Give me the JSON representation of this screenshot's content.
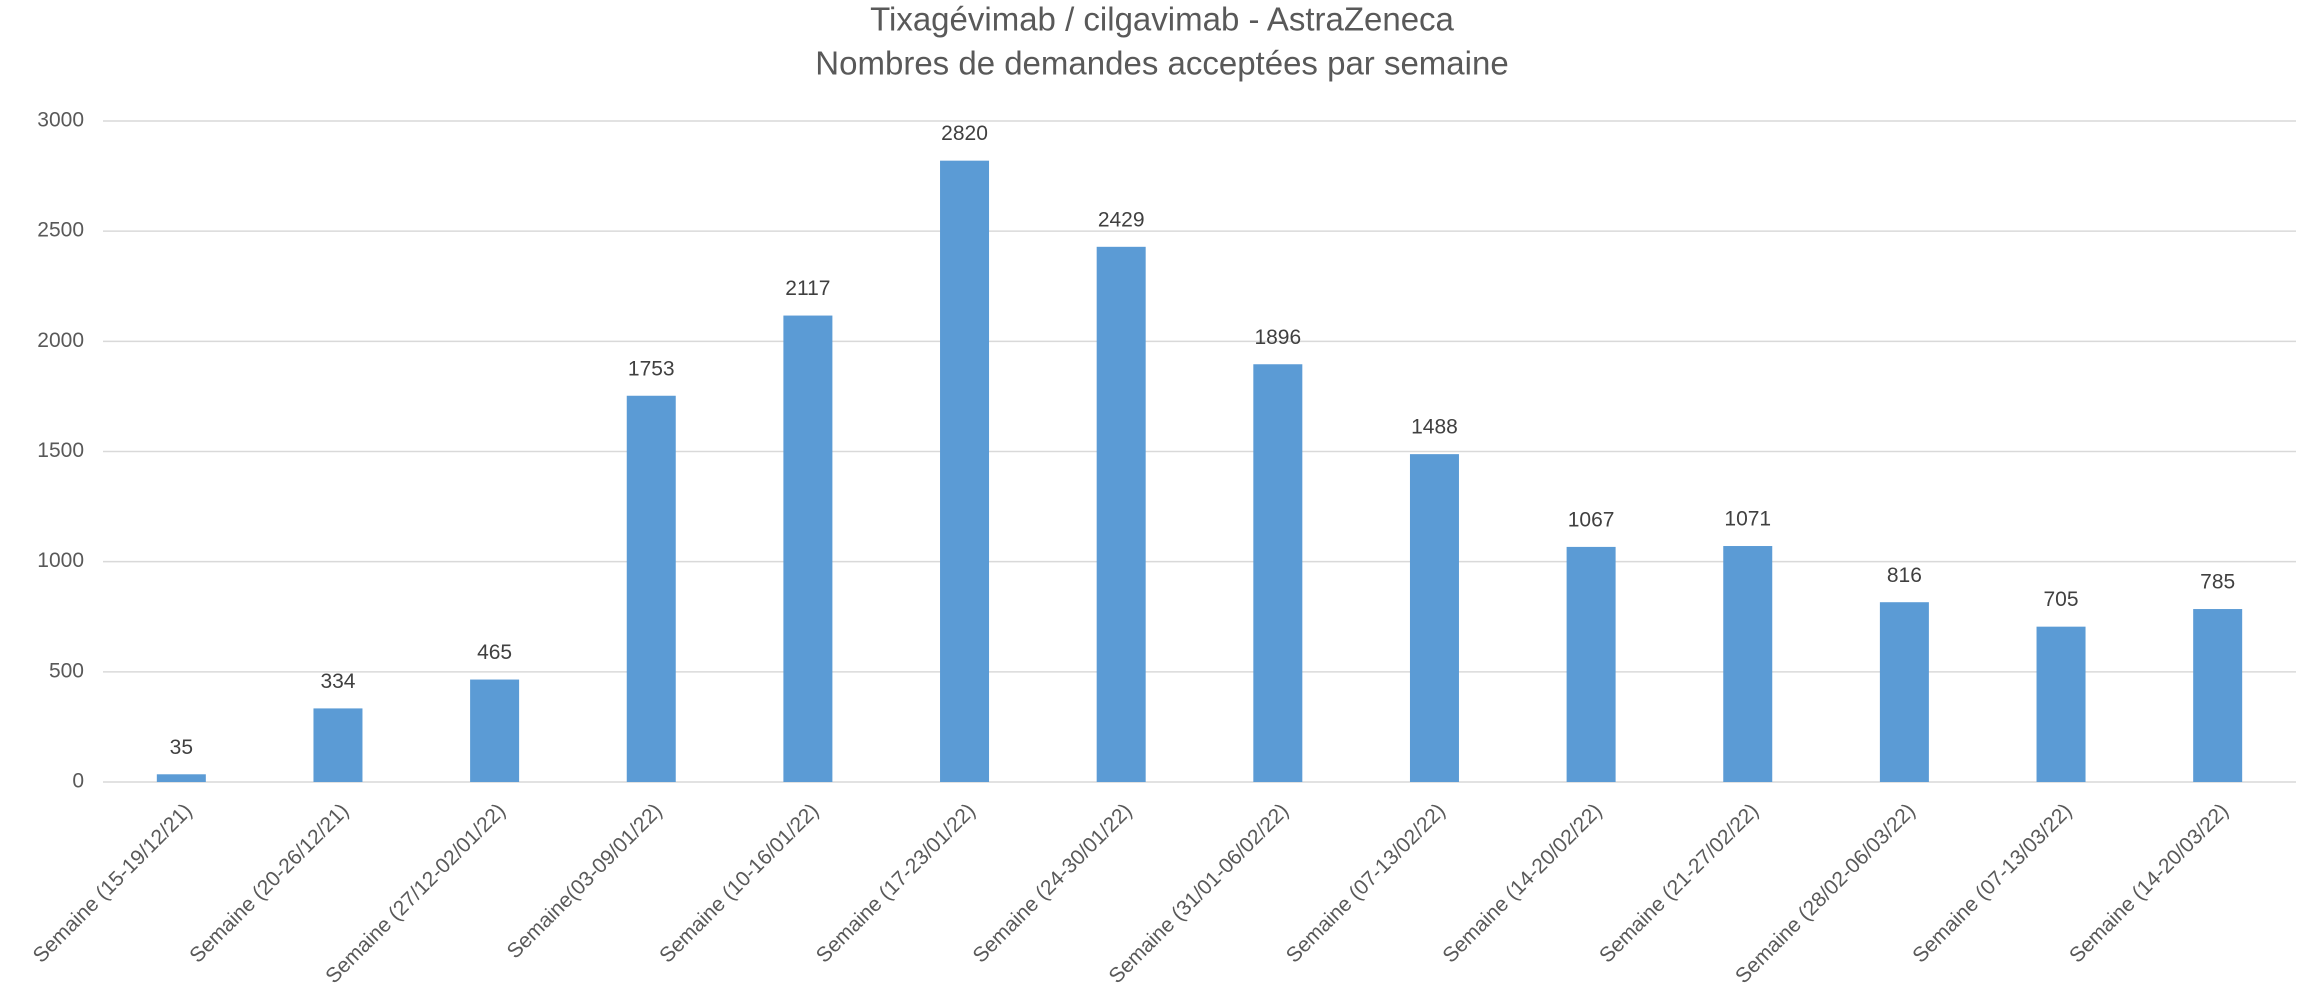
{
  "chart_data": {
    "type": "bar",
    "title": "Tixagévimab / cilgavimab - AstraZeneca",
    "subtitle": "Nombres de demandes acceptées par semaine",
    "categories": [
      "Semaine (15-19/12/21)",
      "Semaine (20-26/12/21)",
      "Semaine (27/12-02/01/22)",
      "Semaine(03-09/01/22)",
      "Semaine (10-16/01/22)",
      "Semaine (17-23/01/22)",
      "Semaine (24-30/01/22)",
      "Semaine (31/01-06/02/22)",
      "Semaine (07-13/02/22)",
      "Semaine (14-20/02/22)",
      "Semaine (21-27/02/22)",
      "Semaine (28/02-06/03/22)",
      "Semaine (07-13/03/22)",
      "Semaine (14-20/03/22)"
    ],
    "values": [
      35,
      334,
      465,
      1753,
      2117,
      2820,
      2429,
      1896,
      1488,
      1067,
      1071,
      816,
      705,
      785
    ],
    "color": "#5b9bd5",
    "ylim": [
      0,
      3000
    ],
    "yticks": [
      0,
      500,
      1000,
      1500,
      2000,
      2500,
      3000
    ],
    "grid": true
  }
}
